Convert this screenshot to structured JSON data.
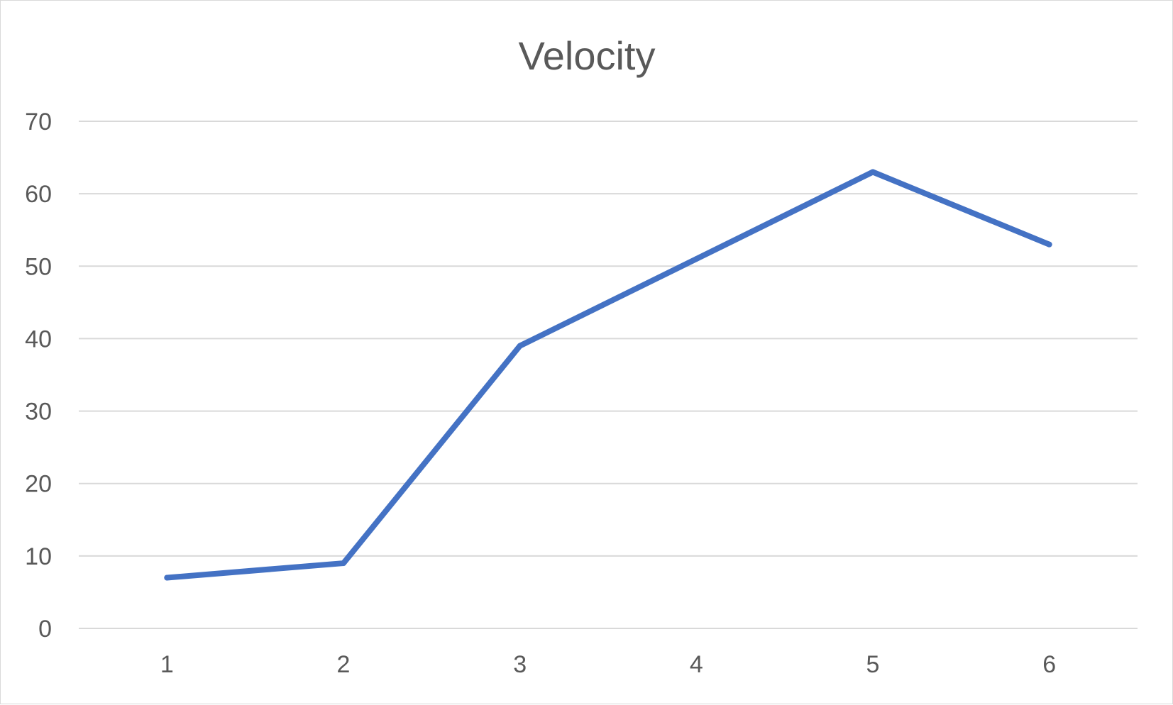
{
  "chart_data": {
    "type": "line",
    "title": "Velocity",
    "xlabel": "",
    "ylabel": "",
    "categories": [
      "1",
      "2",
      "3",
      "4",
      "5",
      "6"
    ],
    "series": [
      {
        "values": [
          7,
          9,
          39,
          51,
          63,
          53
        ],
        "color": "#4472c4"
      }
    ],
    "ylim": [
      0,
      70
    ],
    "yticks": [
      "0",
      "10",
      "20",
      "30",
      "40",
      "50",
      "60",
      "70"
    ],
    "grid": true,
    "legend": "none"
  }
}
